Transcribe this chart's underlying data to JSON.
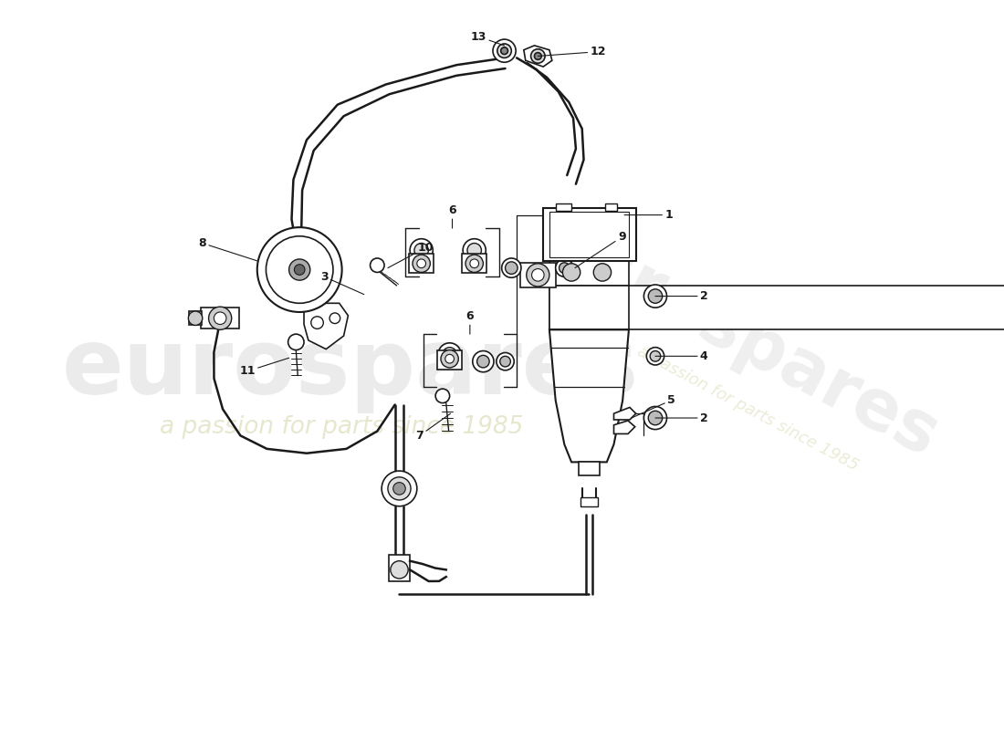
{
  "bg_color": "#ffffff",
  "lc": "#1a1a1a",
  "wm1_color": "#c0c0c0",
  "wm2_color": "#d4d4a8",
  "wm1": "eurospares",
  "wm2": "a passion for parts since 1985",
  "figsize": [
    11.0,
    8.0
  ],
  "dpi": 100,
  "lw_pipe": 1.8,
  "lw_part": 1.2,
  "lw_ann": 0.8,
  "fs_label": 9
}
